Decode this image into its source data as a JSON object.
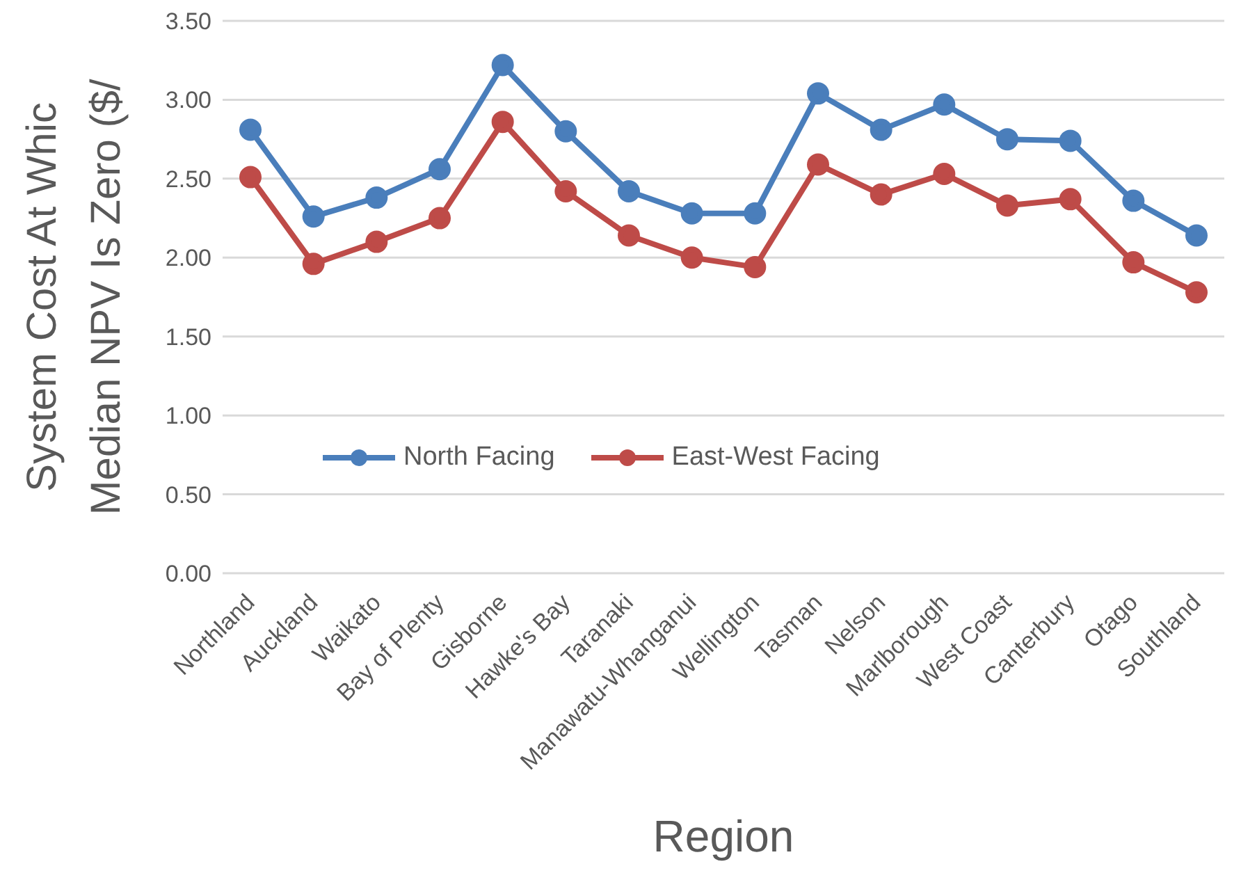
{
  "chart_data": {
    "type": "line",
    "xlabel": "Region",
    "ylabel": "System Cost At Whic\nMedian NPV Is Zero ($/",
    "categories": [
      "Northland",
      "Auckland",
      "Waikato",
      "Bay of Plenty",
      "Gisborne",
      "Hawke's Bay",
      "Taranaki",
      "Manawatu-Whanganui",
      "Wellington",
      "Tasman",
      "Nelson",
      "Marlborough",
      "West Coast",
      "Canterbury",
      "Otago",
      "Southland"
    ],
    "series": [
      {
        "name": "North Facing",
        "color": "#4a7ebb",
        "values": [
          2.81,
          2.26,
          2.38,
          2.56,
          3.22,
          2.8,
          2.42,
          2.28,
          2.28,
          3.04,
          2.81,
          2.97,
          2.75,
          2.74,
          2.36,
          2.14
        ]
      },
      {
        "name": "East-West Facing",
        "color": "#be4b48",
        "values": [
          2.51,
          1.96,
          2.1,
          2.25,
          2.86,
          2.42,
          2.14,
          2.0,
          1.94,
          2.59,
          2.4,
          2.53,
          2.33,
          2.37,
          1.97,
          1.78
        ]
      }
    ],
    "ylim": [
      0,
      3.5
    ],
    "yticks": [
      {
        "value": 0,
        "label": "0.00"
      },
      {
        "value": 0.5,
        "label": "0.50"
      },
      {
        "value": 1,
        "label": "1.00"
      },
      {
        "value": 1.5,
        "label": "1.50"
      },
      {
        "value": 2,
        "label": "2.00"
      },
      {
        "value": 2.5,
        "label": "2.50"
      },
      {
        "value": 3,
        "label": "3.00"
      },
      {
        "value": 3.5,
        "label": "3.50"
      }
    ],
    "grid": "y",
    "legend": "left",
    "marker": "circle",
    "line_style": "solid"
  }
}
